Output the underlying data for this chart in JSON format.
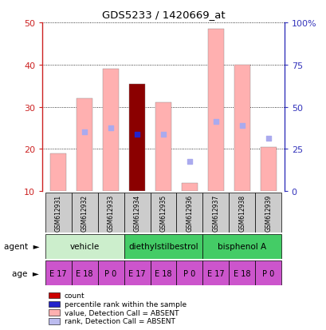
{
  "title": "GDS5233 / 1420669_at",
  "samples": [
    "GSM612931",
    "GSM612932",
    "GSM612933",
    "GSM612934",
    "GSM612935",
    "GSM612936",
    "GSM612937",
    "GSM612938",
    "GSM612939"
  ],
  "bar_heights": [
    19,
    32,
    39,
    35.5,
    31,
    12,
    48.5,
    40,
    20.5
  ],
  "bar_colors": [
    "#ffb0b0",
    "#ffb0b0",
    "#ffb0b0",
    "#8b0000",
    "#ffb0b0",
    "#ffb0b0",
    "#ffb0b0",
    "#ffb0b0",
    "#ffb0b0"
  ],
  "rank_dots_y": [
    null,
    24,
    25,
    23.5,
    23.5,
    17,
    26.5,
    25.5,
    22.5
  ],
  "rank_dot_colors": [
    "#aaaaee",
    "#aaaaee",
    "#aaaaee",
    "#2222cc",
    "#aaaaee",
    "#aaaaee",
    "#aaaaee",
    "#aaaaee",
    "#aaaaee"
  ],
  "rank_dot_present": [
    false,
    false,
    false,
    true,
    false,
    false,
    false,
    false,
    false
  ],
  "ylim_left": [
    10,
    50
  ],
  "yticks_left": [
    10,
    20,
    30,
    40,
    50
  ],
  "yticks_right": [
    0,
    25,
    50,
    75,
    100
  ],
  "ytick_labels_right": [
    "0",
    "25",
    "50",
    "75",
    "100%"
  ],
  "left_axis_color": "#cc2222",
  "right_axis_color": "#3333bb",
  "bar_width": 0.6,
  "sample_bg": "#cccccc",
  "agent_groups": [
    {
      "label": "vehicle",
      "start": 0,
      "end": 2,
      "color": "#cceecc"
    },
    {
      "label": "diethylstilbestrol",
      "start": 3,
      "end": 5,
      "color": "#44cc66"
    },
    {
      "label": "bisphenol A",
      "start": 6,
      "end": 8,
      "color": "#44cc66"
    }
  ],
  "age_labels": [
    "E 17",
    "E 18",
    "P 0",
    "E 17",
    "E 18",
    "P 0",
    "E 17",
    "E 18",
    "P 0"
  ],
  "age_color": "#cc55cc",
  "legend_items": [
    {
      "color": "#cc0000",
      "label": "count"
    },
    {
      "color": "#2222cc",
      "label": "percentile rank within the sample"
    },
    {
      "color": "#ffb0b0",
      "label": "value, Detection Call = ABSENT"
    },
    {
      "color": "#bbbbee",
      "label": "rank, Detection Call = ABSENT"
    }
  ]
}
